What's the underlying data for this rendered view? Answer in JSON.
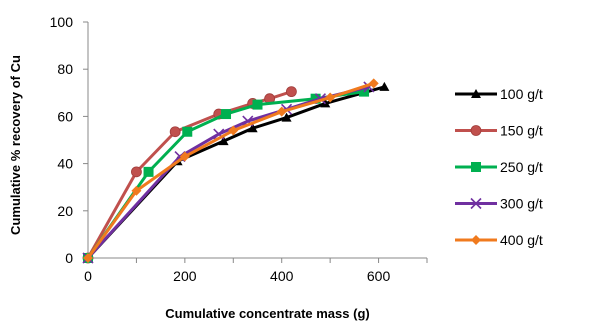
{
  "chart_data": {
    "type": "line",
    "title": "",
    "xlabel": "Cumulative concentrate mass (g)",
    "ylabel": "Cumulative % recovery of Cu",
    "xlim": [
      0,
      700
    ],
    "ylim": [
      0,
      100
    ],
    "x_ticks": [
      0,
      200,
      400,
      600
    ],
    "y_ticks": [
      0,
      20,
      40,
      60,
      80,
      100
    ],
    "grid": false,
    "legend_position": "right",
    "series": [
      {
        "name": "100 g/t",
        "color": "#000000",
        "marker": "triangle",
        "x": [
          0,
          185,
          280,
          340,
          410,
          490,
          612
        ],
        "y": [
          0,
          41,
          49.5,
          55,
          59.5,
          65.5,
          72.5
        ]
      },
      {
        "name": "150 g/t",
        "color": "#c0504d",
        "marker": "circle",
        "x": [
          0,
          100,
          180,
          270,
          340,
          375,
          420
        ],
        "y": [
          0,
          36.5,
          53.5,
          61,
          65.5,
          67.5,
          70.5
        ]
      },
      {
        "name": "250 g/t",
        "color": "#00b050",
        "marker": "square",
        "x": [
          0,
          125,
          205,
          285,
          350,
          470,
          570
        ],
        "y": [
          0,
          36.5,
          53.5,
          61,
          65,
          67.5,
          70.5
        ]
      },
      {
        "name": "300 g/t",
        "color": "#7030a0",
        "marker": "x",
        "x": [
          0,
          190,
          270,
          330,
          410,
          480,
          580
        ],
        "y": [
          0,
          43,
          52.5,
          58,
          63,
          67.5,
          72.5
        ]
      },
      {
        "name": "400 g/t",
        "color": "#f07a1e",
        "marker": "diamond",
        "x": [
          0,
          100,
          200,
          300,
          400,
          500,
          590
        ],
        "y": [
          0,
          28.5,
          43,
          54,
          62,
          68,
          74
        ]
      }
    ]
  }
}
